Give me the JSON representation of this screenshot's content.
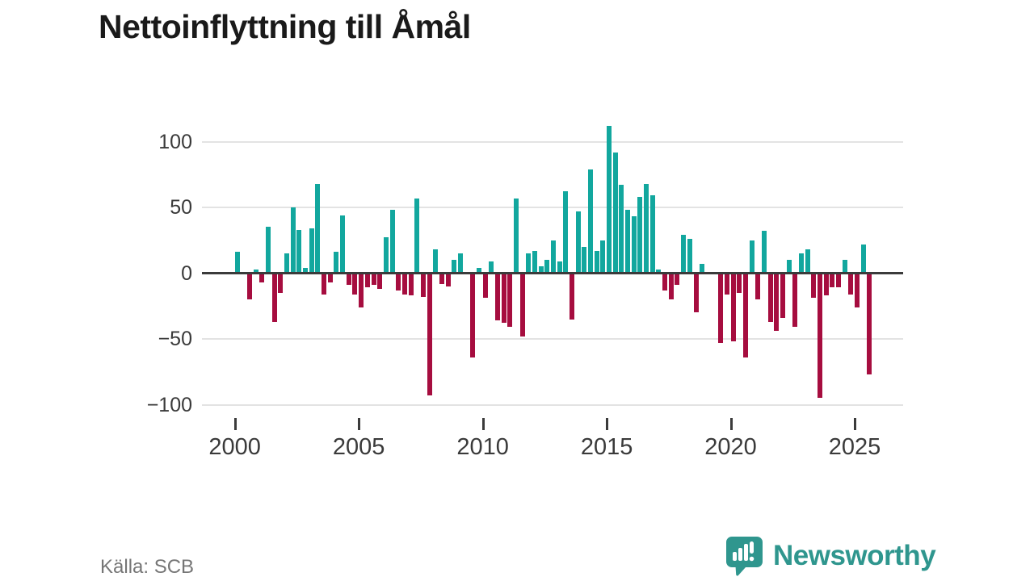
{
  "title": "Nettoinflyttning till Åmål",
  "source": "Källa: SCB",
  "logo": {
    "text": "Newsworthy",
    "icon": "newsworthy-speech-bubble-bar-chart",
    "color": "#2f968e"
  },
  "colors": {
    "positive": "#12a79e",
    "negative": "#a60d3f",
    "grid": "#e3e3e3",
    "zero_line": "#3b3b3b",
    "axis_text": "#3a3a3a"
  },
  "chart_data": {
    "type": "bar",
    "title": "Nettoinflyttning till Åmål",
    "xlabel": "",
    "ylabel": "",
    "ylim": [
      -100,
      112
    ],
    "y_ticks": [
      100,
      50,
      0,
      -50,
      -100
    ],
    "y_tick_labels": [
      "100",
      "50",
      "0",
      "−50",
      "−100"
    ],
    "x_tick_labels": [
      "2000",
      "2005",
      "2010",
      "2015",
      "2020",
      "2025"
    ],
    "grid": "horizontal",
    "legend": "none",
    "categories": [
      "2000Q1",
      "2000Q2",
      "2000Q3",
      "2000Q4",
      "2001Q1",
      "2001Q2",
      "2001Q3",
      "2001Q4",
      "2002Q1",
      "2002Q2",
      "2002Q3",
      "2002Q4",
      "2003Q1",
      "2003Q2",
      "2003Q3",
      "2003Q4",
      "2004Q1",
      "2004Q2",
      "2004Q3",
      "2004Q4",
      "2005Q1",
      "2005Q2",
      "2005Q3",
      "2005Q4",
      "2006Q1",
      "2006Q2",
      "2006Q3",
      "2006Q4",
      "2007Q1",
      "2007Q2",
      "2007Q3",
      "2007Q4",
      "2008Q1",
      "2008Q2",
      "2008Q3",
      "2008Q4",
      "2009Q1",
      "2009Q2",
      "2009Q3",
      "2009Q4",
      "2010Q1",
      "2010Q2",
      "2010Q3",
      "2010Q4",
      "2011Q1",
      "2011Q2",
      "2011Q3",
      "2011Q4",
      "2012Q1",
      "2012Q2",
      "2012Q3",
      "2012Q4",
      "2013Q1",
      "2013Q2",
      "2013Q3",
      "2013Q4",
      "2014Q1",
      "2014Q2",
      "2014Q3",
      "2014Q4",
      "2015Q1",
      "2015Q2",
      "2015Q3",
      "2015Q4",
      "2016Q1",
      "2016Q2",
      "2016Q3",
      "2016Q4",
      "2017Q1",
      "2017Q2",
      "2017Q3",
      "2017Q4",
      "2018Q1",
      "2018Q2",
      "2018Q3",
      "2018Q4",
      "2019Q1",
      "2019Q2",
      "2019Q3",
      "2019Q4",
      "2020Q1",
      "2020Q2",
      "2020Q3",
      "2020Q4",
      "2021Q1",
      "2021Q2",
      "2021Q3",
      "2021Q4",
      "2022Q1",
      "2022Q2",
      "2022Q3",
      "2022Q4",
      "2023Q1",
      "2023Q2",
      "2023Q3",
      "2023Q4",
      "2024Q1",
      "2024Q2",
      "2024Q3",
      "2024Q4",
      "2025Q1",
      "2025Q2",
      "2025Q3"
    ],
    "values": [
      16,
      0,
      -20,
      3,
      -7,
      35,
      -37,
      -15,
      15,
      50,
      33,
      4,
      34,
      68,
      -16,
      -7,
      16,
      44,
      -9,
      -16,
      -26,
      -11,
      -9,
      -12,
      27,
      48,
      -13,
      -16,
      -17,
      57,
      -18,
      -93,
      18,
      -8,
      -10,
      10,
      15,
      0,
      -64,
      4,
      -19,
      9,
      -36,
      -38,
      -41,
      57,
      -48,
      15,
      17,
      5,
      10,
      25,
      9,
      62,
      -35,
      47,
      20,
      79,
      17,
      25,
      112,
      92,
      67,
      48,
      43,
      58,
      68,
      59,
      3,
      -13,
      -20,
      -9,
      29,
      26,
      -30,
      7,
      0,
      0,
      -53,
      -16,
      -52,
      -15,
      -64,
      25,
      -20,
      32,
      -37,
      -44,
      -34,
      10,
      -41,
      15,
      18,
      -19,
      -95,
      -17,
      -11,
      -11,
      10,
      -16,
      -26,
      22,
      -77
    ]
  }
}
